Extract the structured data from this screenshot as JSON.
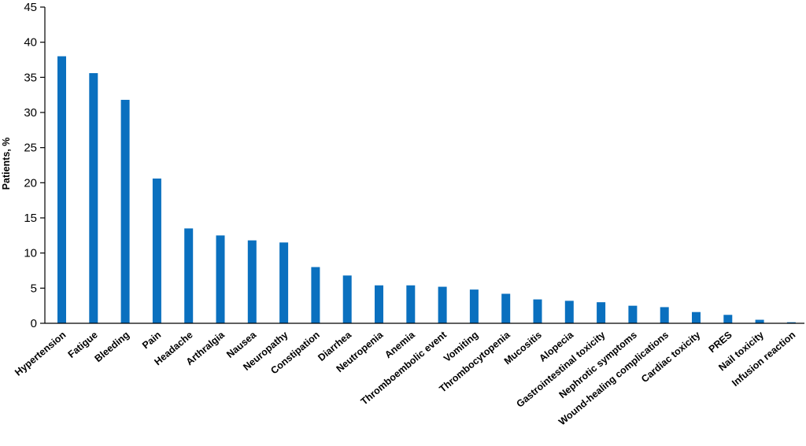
{
  "colors": {
    "bar": "#0a70bf",
    "axis": "#000000"
  },
  "chart_data": {
    "type": "bar",
    "title": "",
    "xlabel": "",
    "ylabel": "Patients, %",
    "ylim": [
      0,
      45
    ],
    "yticks": [
      "0",
      "5",
      "10",
      "15",
      "20",
      "25",
      "30",
      "35",
      "40",
      "45"
    ],
    "grid": false,
    "legend": "none",
    "categories": [
      "Hypertension",
      "Fatigue",
      "Bleeding",
      "Pain",
      "Headache",
      "Arthralgia",
      "Nausea",
      "Neuropathy",
      "Constipation",
      "Diarrhea",
      "Neutropenia",
      "Anemia",
      "Thromboembolic event",
      "Vomiting",
      "Thrombocytopenia",
      "Mucositis",
      "Alopecia",
      "Gastrointestinal toxicity",
      "Nephrotic symptoms",
      "Wound-healing complications",
      "Cardiac toxicity",
      "PRES",
      "Nail toxicity",
      "Infusion reaction"
    ],
    "values": [
      38,
      35.6,
      31.8,
      20.6,
      13.5,
      12.5,
      11.8,
      11.5,
      8,
      6.8,
      5.4,
      5.4,
      5.2,
      4.8,
      4.2,
      3.4,
      3.2,
      3,
      2.5,
      2.3,
      1.6,
      1.2,
      0.5,
      0.15
    ]
  }
}
